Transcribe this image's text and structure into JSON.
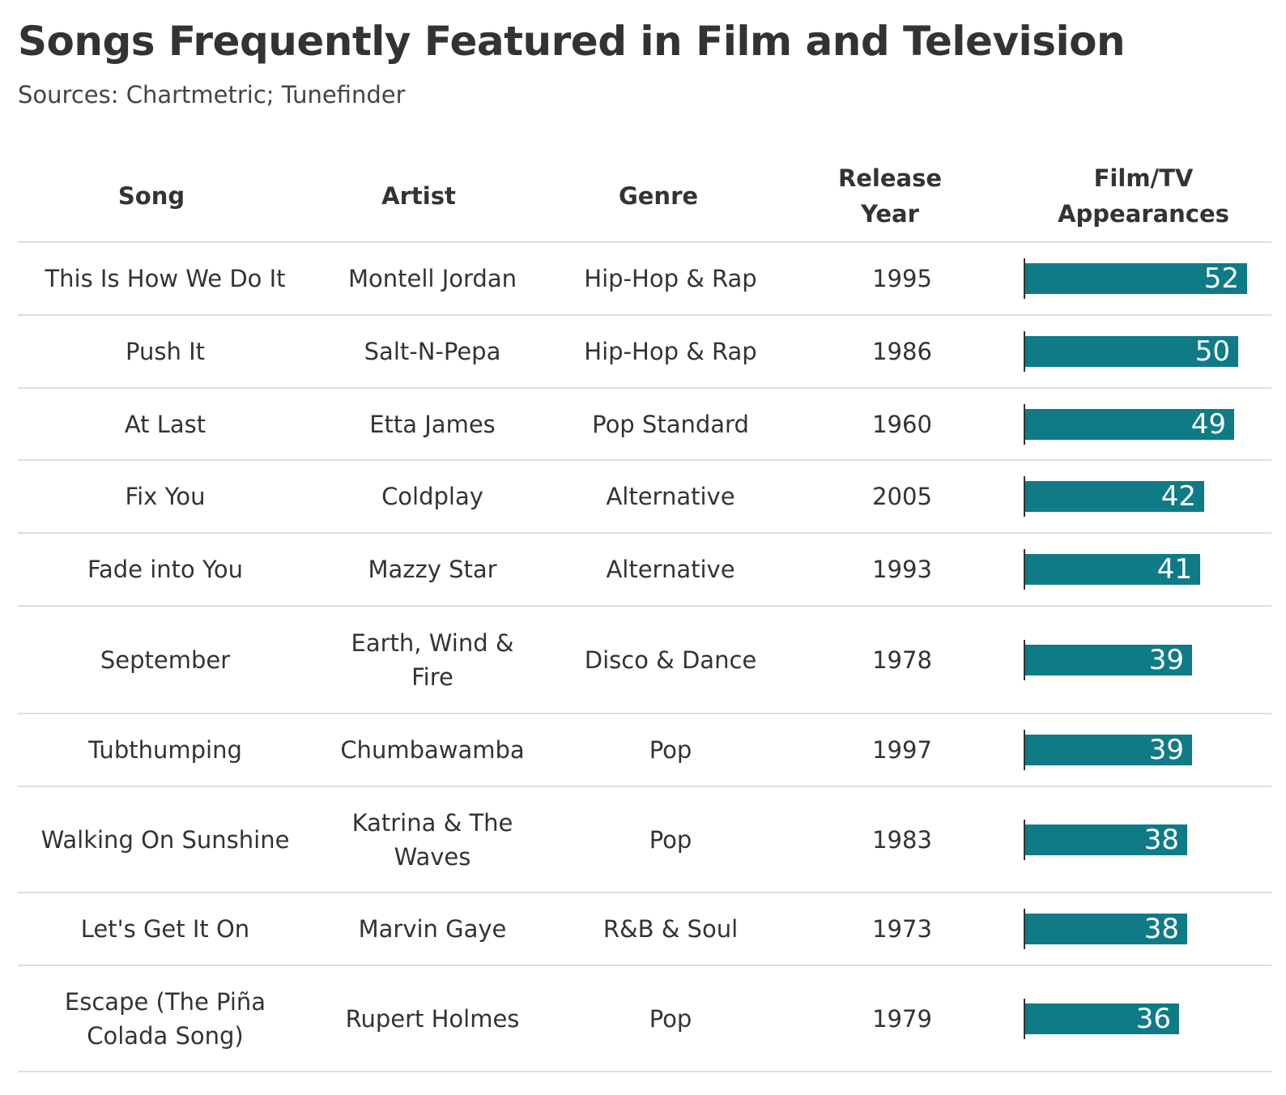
{
  "title": "Songs Frequently Featured in Film and Television",
  "subtitle": "Sources: Chartmetric; Tunefinder",
  "headers": {
    "song": "Song",
    "artist": "Artist",
    "genre": "Genre",
    "year": "Release Year",
    "appearances": "Film/TV Appearances"
  },
  "colors": {
    "bar": "#0f7b87",
    "text": "#333333",
    "divider": "#dddddd"
  },
  "chart_data": {
    "type": "table",
    "title": "Songs Frequently Featured in Film and Television",
    "subtitle": "Sources: Chartmetric; Tunefinder",
    "columns": [
      "Song",
      "Artist",
      "Genre",
      "Release Year",
      "Film/TV Appearances"
    ],
    "bar_column": "Film/TV Appearances",
    "bar_max": 52,
    "rows": [
      {
        "song": "This Is How We Do It",
        "artist": "Montell Jordan",
        "genre": "Hip-Hop & Rap",
        "year": "1995",
        "appearances": 52
      },
      {
        "song": "Push It",
        "artist": "Salt-N-Pepa",
        "genre": "Hip-Hop & Rap",
        "year": "1986",
        "appearances": 50
      },
      {
        "song": "At Last",
        "artist": "Etta James",
        "genre": "Pop Standard",
        "year": "1960",
        "appearances": 49
      },
      {
        "song": "Fix You",
        "artist": "Coldplay",
        "genre": "Alternative",
        "year": "2005",
        "appearances": 42
      },
      {
        "song": "Fade into You",
        "artist": "Mazzy Star",
        "genre": "Alternative",
        "year": "1993",
        "appearances": 41
      },
      {
        "song": "September",
        "artist": "Earth, Wind & Fire",
        "genre": "Disco & Dance",
        "year": "1978",
        "appearances": 39
      },
      {
        "song": "Tubthumping",
        "artist": "Chumbawamba",
        "genre": "Pop",
        "year": "1997",
        "appearances": 39
      },
      {
        "song": "Walking On Sunshine",
        "artist": "Katrina & The Waves",
        "genre": "Pop",
        "year": "1983",
        "appearances": 38
      },
      {
        "song": "Let's Get It On",
        "artist": "Marvin Gaye",
        "genre": "R&B & Soul",
        "year": "1973",
        "appearances": 38
      },
      {
        "song": "Escape (The Piña Colada Song)",
        "artist": "Rupert Holmes",
        "genre": "Pop",
        "year": "1979",
        "appearances": 36
      }
    ]
  }
}
